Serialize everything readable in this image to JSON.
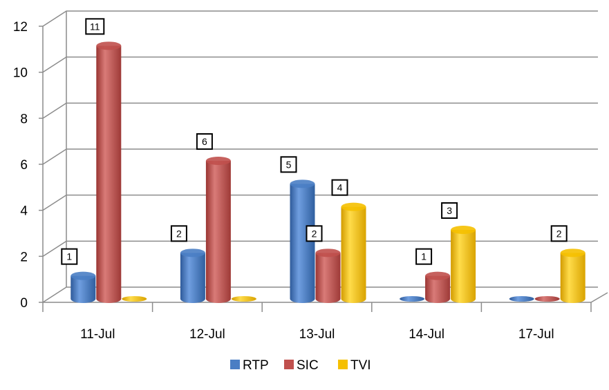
{
  "chart_data": {
    "type": "bar",
    "style": "3d-cylinder",
    "categories": [
      "11-Jul",
      "12-Jul",
      "13-Jul",
      "14-Jul",
      "17-Jul"
    ],
    "series": [
      {
        "name": "RTP",
        "values": [
          1,
          2,
          5,
          0,
          0
        ],
        "color": "#4a7ec4"
      },
      {
        "name": "SIC",
        "values": [
          11,
          6,
          2,
          1,
          0
        ],
        "color": "#c0504d"
      },
      {
        "name": "TVI",
        "values": [
          0,
          0,
          4,
          3,
          2
        ],
        "color": "#f5c000"
      }
    ],
    "data_labels": [
      [
        "1",
        "11",
        ""
      ],
      [
        "2",
        "6",
        ""
      ],
      [
        "5",
        "2",
        "4"
      ],
      [
        "",
        "1",
        "3"
      ],
      [
        "",
        "",
        "2"
      ]
    ],
    "ylim": [
      0,
      12
    ],
    "yticks": [
      "0",
      "2",
      "4",
      "6",
      "8",
      "10",
      "12"
    ],
    "grid": true,
    "legend_position": "bottom",
    "title": "",
    "xlabel": "",
    "ylabel": ""
  }
}
